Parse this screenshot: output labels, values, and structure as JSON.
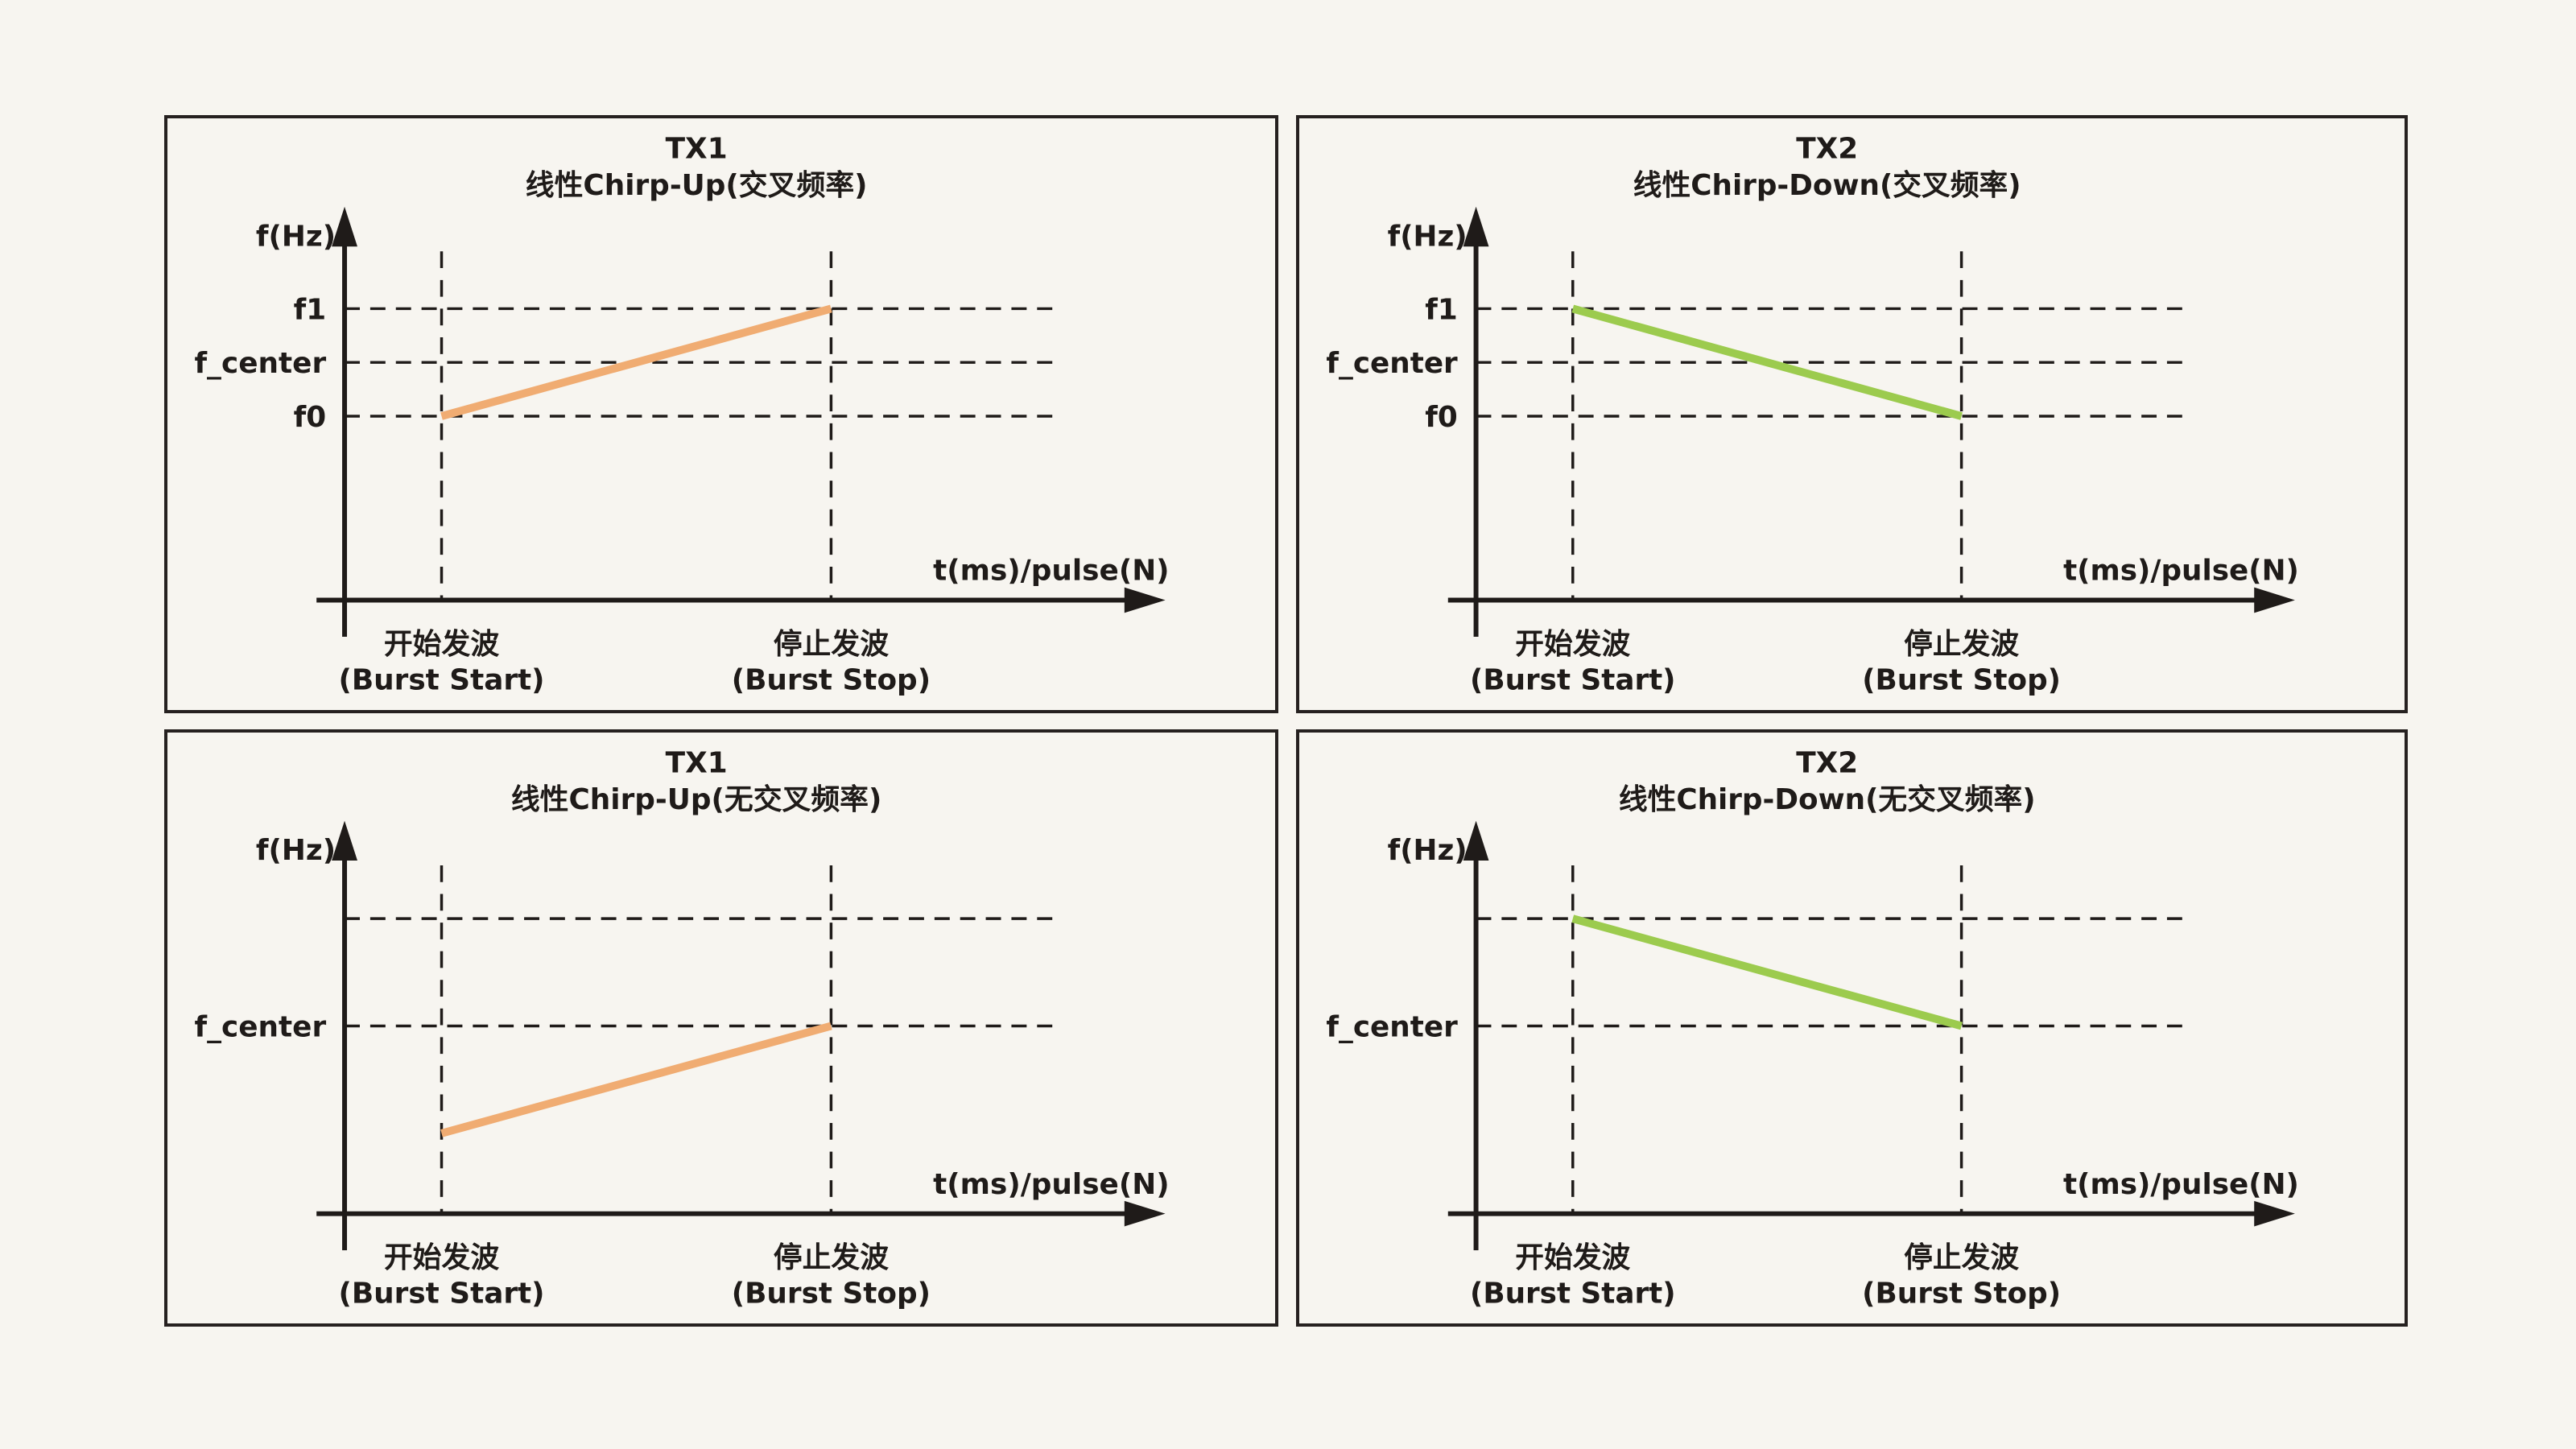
{
  "colors": {
    "background": "#F7F5F0",
    "ink": "#1F1B19",
    "panel_border": "#262120",
    "tx1_orange": "#F0AC72",
    "tx2_green": "#9CCB4E"
  },
  "chart_data": [
    {
      "type": "line",
      "panel": "top-left",
      "title_line1": "TX1",
      "title_line2": "线性Chirp-Up(交叉频率)",
      "line_color": "#F0AC72",
      "y_axis_label": "f(Hz)",
      "x_axis_label": "t(ms)/pulse(N)",
      "row": 0,
      "gridlines": [
        {
          "label": "f1",
          "level": 1
        },
        {
          "label": "f_center",
          "level": 0.5
        },
        {
          "label": "f0",
          "level": 0
        }
      ],
      "chirp": {
        "name": "TX1 linear chirp up",
        "start_at": "f0",
        "end_at": "f1",
        "start_level": 0,
        "end_level": 1
      },
      "x_ticks": [
        {
          "cn": "开始发波",
          "en": "(Burst Start)"
        },
        {
          "cn": "停止发波",
          "en": "(Burst Stop)"
        }
      ]
    },
    {
      "type": "line",
      "panel": "top-right",
      "title_line1": "TX2",
      "title_line2": "线性Chirp-Down(交叉频率)",
      "line_color": "#9CCB4E",
      "y_axis_label": "f(Hz)",
      "x_axis_label": "t(ms)/pulse(N)",
      "row": 0,
      "gridlines": [
        {
          "label": "f1",
          "level": 1
        },
        {
          "label": "f_center",
          "level": 0.5
        },
        {
          "label": "f0",
          "level": 0
        }
      ],
      "chirp": {
        "name": "TX2 linear chirp down",
        "start_at": "f1",
        "end_at": "f0",
        "start_level": 1,
        "end_level": 0
      },
      "x_ticks": [
        {
          "cn": "开始发波",
          "en": "(Burst Start)"
        },
        {
          "cn": "停止发波",
          "en": "(Burst Stop)"
        }
      ]
    },
    {
      "type": "line",
      "panel": "bottom-left",
      "title_line1": "TX1",
      "title_line2": "线性Chirp-Up(无交叉频率)",
      "line_color": "#F0AC72",
      "y_axis_label": "f(Hz)",
      "x_axis_label": "t(ms)/pulse(N)",
      "row": 1,
      "gridlines": [
        {
          "label": "",
          "level": 1
        },
        {
          "label": "f_center",
          "level": 0
        }
      ],
      "chirp": {
        "name": "TX1 linear chirp up (non-crossing)",
        "start_at": "below f_center",
        "end_at": "f_center",
        "start_level": -1,
        "end_level": 0
      },
      "x_ticks": [
        {
          "cn": "开始发波",
          "en": "(Burst Start)"
        },
        {
          "cn": "停止发波",
          "en": "(Burst Stop)"
        }
      ]
    },
    {
      "type": "line",
      "panel": "bottom-right",
      "title_line1": "TX2",
      "title_line2": "线性Chirp-Down(无交叉频率)",
      "line_color": "#9CCB4E",
      "y_axis_label": "f(Hz)",
      "x_axis_label": "t(ms)/pulse(N)",
      "row": 1,
      "gridlines": [
        {
          "label": "",
          "level": 1
        },
        {
          "label": "f_center",
          "level": 0
        }
      ],
      "chirp": {
        "name": "TX2 linear chirp down (non-crossing)",
        "start_at": "above f_center",
        "end_at": "f_center",
        "start_level": 1,
        "end_level": 0
      },
      "x_ticks": [
        {
          "cn": "开始发波",
          "en": "(Burst Start)"
        },
        {
          "cn": "停止发波",
          "en": "(Burst Stop)"
        }
      ]
    }
  ]
}
